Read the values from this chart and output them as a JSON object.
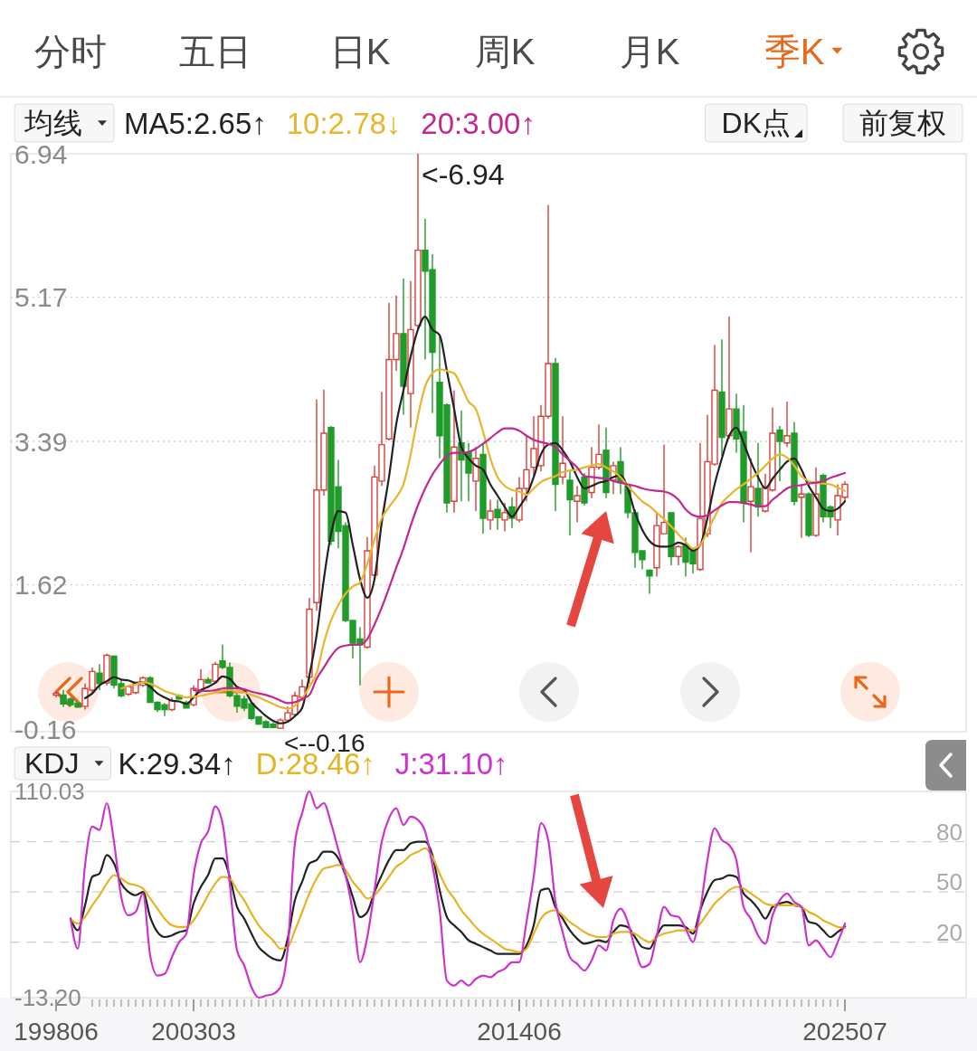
{
  "chart_data": [
    {
      "type": "candlestick",
      "legend_title": "均线",
      "legend": "top",
      "tick_labels": "y",
      "grid": "y",
      "categories": [
        "199806",
        null,
        null,
        null,
        null,
        null,
        null,
        null,
        null,
        null,
        null,
        null,
        null,
        null,
        null,
        null,
        null,
        null,
        null,
        "200303",
        null,
        null,
        null,
        null,
        null,
        null,
        null,
        null,
        null,
        null,
        null,
        null,
        null,
        null,
        null,
        null,
        null,
        null,
        null,
        null,
        null,
        null,
        null,
        null,
        null,
        null,
        null,
        null,
        null,
        null,
        null,
        null,
        null,
        null,
        null,
        null,
        null,
        null,
        null,
        null,
        null,
        null,
        null,
        null,
        "201406",
        null,
        null,
        null,
        null,
        null,
        null,
        null,
        null,
        null,
        null,
        null,
        null,
        null,
        null,
        null,
        null,
        null,
        null,
        null,
        null,
        null,
        null,
        null,
        null,
        null,
        null,
        null,
        null,
        null,
        null,
        null,
        null,
        null,
        null,
        null,
        null,
        null,
        null,
        null,
        null,
        null,
        null,
        null,
        null,
        "202507"
      ],
      "ylim": [
        -0.16,
        6.94
      ],
      "yticks": [
        -0.16,
        1.62,
        3.39,
        5.17,
        6.94
      ],
      "ohlc": [
        [
          0.26,
          0.31,
          0.23,
          0.28
        ],
        [
          0.26,
          0.32,
          0.11,
          0.15
        ],
        [
          0.21,
          0.23,
          0.12,
          0.14
        ],
        [
          0.16,
          0.17,
          0.1,
          0.11
        ],
        [
          0.12,
          0.4,
          0.08,
          0.34
        ],
        [
          0.32,
          0.6,
          0.27,
          0.55
        ],
        [
          0.53,
          0.64,
          0.32,
          0.4
        ],
        [
          0.41,
          0.77,
          0.38,
          0.75
        ],
        [
          0.74,
          0.75,
          0.34,
          0.38
        ],
        [
          0.4,
          0.45,
          0.23,
          0.25
        ],
        [
          0.27,
          0.38,
          0.25,
          0.36
        ],
        [
          0.29,
          0.42,
          0.27,
          0.4
        ],
        [
          0.38,
          0.49,
          0.36,
          0.47
        ],
        [
          0.47,
          0.49,
          0.16,
          0.17
        ],
        [
          0.17,
          0.18,
          0.05,
          0.08
        ],
        [
          0.14,
          0.16,
          0,
          0.08
        ],
        [
          0.08,
          0.23,
          0.06,
          0.19
        ],
        [
          0.25,
          0.27,
          0.2,
          0.21
        ],
        [
          0.17,
          0.19,
          0.09,
          0.1
        ],
        [
          0.14,
          0.38,
          0.12,
          0.34
        ],
        [
          0.32,
          0.58,
          0.28,
          0.45
        ],
        [
          0.45,
          0.48,
          0.4,
          0.41
        ],
        [
          0.43,
          0.67,
          0.4,
          0.64
        ],
        [
          0.68,
          0.88,
          0.58,
          0.6
        ],
        [
          0.6,
          0.66,
          0.23,
          0.25
        ],
        [
          0.25,
          0.28,
          0.04,
          0.12
        ],
        [
          0.21,
          0.25,
          0.06,
          0.1
        ],
        [
          0.15,
          0.17,
          -0.05,
          -0.03
        ],
        [
          -0.01,
          0,
          -0.11,
          -0.1
        ],
        [
          -0.07,
          -0.05,
          -0.15,
          -0.14
        ],
        [
          -0.1,
          -0.08,
          -0.15,
          -0.14
        ],
        [
          -0.15,
          -0.03,
          -0.16,
          -0.05
        ],
        [
          -0.05,
          0.12,
          -0.08,
          0.04
        ],
        [
          0.02,
          0.3,
          0,
          0.25
        ],
        [
          0.23,
          0.45,
          0.19,
          0.36
        ],
        [
          0.48,
          1.46,
          0.4,
          1.32
        ],
        [
          1.4,
          3.91,
          1.3,
          2.79
        ],
        [
          2.79,
          4.03,
          2.72,
          3.49
        ],
        [
          3.56,
          3.58,
          2.11,
          2.16
        ],
        [
          2.83,
          3.16,
          2.07,
          2.28
        ],
        [
          2.35,
          2.39,
          1.16,
          1.18
        ],
        [
          1.18,
          1.18,
          0.71,
          0.9
        ],
        [
          0.95,
          1.1,
          0.38,
          0.88
        ],
        [
          0.85,
          2.21,
          0.83,
          2.04
        ],
        [
          1.74,
          3.09,
          1.72,
          2.95
        ],
        [
          2.9,
          4.0,
          2.84,
          3.35
        ],
        [
          3.42,
          5.1,
          3.4,
          4.4
        ],
        [
          4.4,
          5.19,
          4.26,
          4.72
        ],
        [
          4.72,
          5.4,
          3.72,
          4.07
        ],
        [
          3.98,
          5.37,
          3.56,
          4.77
        ],
        [
          4.82,
          6.94,
          4.77,
          5.75
        ],
        [
          5.75,
          6.14,
          4.4,
          5.49
        ],
        [
          5.51,
          5.7,
          3.74,
          4.49
        ],
        [
          4.12,
          4.68,
          3.18,
          3.46
        ],
        [
          3.84,
          3.86,
          2.51,
          2.63
        ],
        [
          2.65,
          4.02,
          2.51,
          3.32
        ],
        [
          3.37,
          3.77,
          2.65,
          3.16
        ],
        [
          3.26,
          3.37,
          2.65,
          3.0
        ],
        [
          2.9,
          3.32,
          2.53,
          3.18
        ],
        [
          3.23,
          3.37,
          2.25,
          2.44
        ],
        [
          2.42,
          2.67,
          2.3,
          2.53
        ],
        [
          2.55,
          2.67,
          2.3,
          2.45
        ],
        [
          2.42,
          2.63,
          2.28,
          2.51
        ],
        [
          2.58,
          2.7,
          2.32,
          2.44
        ],
        [
          2.42,
          2.95,
          2.39,
          2.81
        ],
        [
          2.81,
          3.46,
          2.65,
          3.04
        ],
        [
          3.07,
          3.7,
          2.97,
          3.3
        ],
        [
          3.09,
          3.84,
          3.02,
          3.7
        ],
        [
          3.7,
          6.31,
          3.67,
          4.35
        ],
        [
          4.35,
          4.42,
          2.53,
          2.86
        ],
        [
          2.95,
          3.7,
          2.86,
          3.12
        ],
        [
          2.91,
          3.04,
          2.23,
          2.67
        ],
        [
          2.65,
          2.84,
          2.39,
          2.72
        ],
        [
          2.95,
          3.0,
          2.6,
          2.63
        ],
        [
          2.76,
          3.32,
          2.69,
          3.07
        ],
        [
          3.07,
          3.6,
          3.04,
          3.23
        ],
        [
          3.28,
          3.56,
          2.69,
          2.76
        ],
        [
          2.91,
          3.14,
          2.74,
          3.09
        ],
        [
          3.14,
          3.32,
          2.74,
          2.88
        ],
        [
          2.84,
          2.86,
          2.44,
          2.51
        ],
        [
          2.51,
          2.55,
          1.83,
          2.02
        ],
        [
          2.04,
          2.04,
          1.81,
          1.93
        ],
        [
          1.8,
          1.81,
          1.51,
          1.73
        ],
        [
          1.83,
          2.51,
          1.72,
          2.35
        ],
        [
          2.25,
          3.35,
          2.25,
          2.39
        ],
        [
          2.51,
          2.51,
          1.86,
          1.97
        ],
        [
          1.97,
          2.11,
          1.86,
          2.09
        ],
        [
          2.11,
          2.2,
          1.72,
          1.9
        ],
        [
          2.04,
          2.06,
          1.76,
          1.88
        ],
        [
          1.81,
          3.37,
          1.79,
          2.44
        ],
        [
          2.25,
          3.72,
          2.21,
          3.14
        ],
        [
          3.11,
          4.58,
          3.09,
          4.02
        ],
        [
          4.0,
          4.65,
          3.21,
          3.44
        ],
        [
          3.46,
          4.93,
          3.42,
          3.79
        ],
        [
          3.79,
          3.98,
          3.25,
          3.42
        ],
        [
          3.51,
          3.84,
          2.39,
          2.63
        ],
        [
          2.65,
          3.18,
          2.02,
          2.83
        ],
        [
          2.81,
          3.37,
          2.46,
          2.58
        ],
        [
          2.53,
          2.99,
          2.51,
          2.83
        ],
        [
          2.79,
          3.81,
          2.77,
          3.49
        ],
        [
          3.53,
          3.58,
          2.9,
          3.39
        ],
        [
          3.37,
          3.88,
          3.32,
          3.46
        ],
        [
          3.49,
          3.63,
          2.6,
          2.65
        ],
        [
          2.7,
          2.86,
          2.2,
          2.74
        ],
        [
          2.74,
          2.76,
          2.21,
          2.23
        ],
        [
          2.23,
          3.07,
          2.21,
          2.74
        ],
        [
          2.97,
          2.99,
          2.39,
          2.46
        ],
        [
          2.58,
          2.6,
          2.32,
          2.46
        ],
        [
          2.42,
          2.86,
          2.23,
          2.72
        ],
        [
          2.7,
          2.9,
          2.65,
          2.86
        ]
      ],
      "series": [
        {
          "name": "MA5:2.65↑",
          "type": "line",
          "color": "#222222",
          "values": [
            null,
            null,
            null,
            null,
            0.22,
            0.28,
            0.38,
            0.43,
            0.48,
            0.45,
            0.44,
            0.41,
            0.42,
            0.36,
            0.28,
            0.23,
            0.19,
            0.18,
            0.15,
            0.23,
            0.32,
            0.36,
            0.41,
            0.49,
            0.46,
            0.36,
            0.32,
            0.17,
            0.08,
            0,
            -0.06,
            -0.09,
            -0.07,
            0,
            0.1,
            0.5,
            1.0,
            1.69,
            2.25,
            2.53,
            2.51,
            2.11,
            1.69,
            1.46,
            1.69,
            2.39,
            2.95,
            3.6,
            4.02,
            4.44,
            4.77,
            4.93,
            4.77,
            4.7,
            4.26,
            3.79,
            3.32,
            3.18,
            3.09,
            3.04,
            2.86,
            2.72,
            2.58,
            2.46,
            2.58,
            2.72,
            2.95,
            3.23,
            3.35,
            3.37,
            3.28,
            3.14,
            2.95,
            2.81,
            2.84,
            2.88,
            2.9,
            2.95,
            2.97,
            2.81,
            2.51,
            2.3,
            2.16,
            2.1,
            2.09,
            2.1,
            2.14,
            2.11,
            2.04,
            2.11,
            2.44,
            2.86,
            3.18,
            3.46,
            3.56,
            3.37,
            3.14,
            2.95,
            2.81,
            2.93,
            3.04,
            3.14,
            3.18,
            3.04,
            2.84,
            2.7,
            2.56,
            2.53,
            2.56,
            2.65
          ]
        },
        {
          "name": "10:2.78↓",
          "type": "line",
          "color": "#e8b52c",
          "values": [
            null,
            null,
            null,
            null,
            null,
            null,
            null,
            null,
            null,
            0.34,
            0.37,
            0.39,
            0.42,
            0.4,
            0.36,
            0.31,
            0.28,
            0.25,
            0.23,
            0.24,
            0.25,
            0.27,
            0.29,
            0.31,
            0.32,
            0.3,
            0.29,
            0.26,
            0.23,
            0.19,
            0.15,
            0.11,
            0.09,
            0.13,
            0.22,
            0.36,
            0.53,
            0.9,
            1.18,
            1.37,
            1.51,
            1.6,
            1.65,
            1.88,
            2.18,
            2.44,
            2.58,
            2.7,
            2.86,
            3.23,
            3.7,
            4.07,
            4.23,
            4.28,
            4.26,
            4.23,
            4.07,
            3.88,
            3.79,
            3.51,
            3.18,
            2.95,
            2.84,
            2.79,
            2.77,
            2.73,
            2.81,
            2.89,
            2.93,
            2.96,
            3.01,
            3.03,
            3.04,
            3.07,
            3.09,
            3.11,
            3.07,
            3.02,
            2.95,
            2.84,
            2.74,
            2.65,
            2.59,
            2.51,
            2.43,
            2.34,
            2.24,
            2.15,
            2.07,
            2.11,
            2.28,
            2.46,
            2.63,
            2.72,
            2.8,
            2.86,
            2.93,
            3.0,
            3.09,
            3.18,
            3.23,
            3.19,
            3.09,
            2.96,
            2.9,
            2.88,
            2.87,
            2.86,
            2.82,
            2.78
          ]
        },
        {
          "name": "20:3.00↑",
          "type": "line",
          "color": "#c2298f",
          "values": [
            null,
            null,
            null,
            null,
            null,
            null,
            null,
            null,
            null,
            null,
            null,
            null,
            null,
            null,
            null,
            null,
            null,
            null,
            null,
            0.32,
            0.31,
            0.31,
            0.32,
            0.34,
            0.35,
            0.34,
            0.33,
            0.3,
            0.28,
            0.26,
            0.23,
            0.19,
            0.16,
            0.17,
            0.21,
            0.26,
            0.46,
            0.6,
            0.74,
            0.84,
            0.87,
            0.88,
            0.88,
            0.95,
            1.13,
            1.34,
            1.58,
            1.83,
            2.07,
            2.35,
            2.6,
            2.81,
            2.98,
            3.11,
            3.21,
            3.25,
            3.25,
            3.26,
            3.3,
            3.36,
            3.43,
            3.5,
            3.55,
            3.55,
            3.52,
            3.46,
            3.41,
            3.38,
            3.36,
            3.32,
            3.23,
            3.15,
            3.07,
            2.96,
            2.95,
            2.94,
            2.93,
            2.9,
            2.88,
            2.86,
            2.84,
            2.81,
            2.79,
            2.78,
            2.77,
            2.74,
            2.67,
            2.55,
            2.48,
            2.46,
            2.48,
            2.54,
            2.6,
            2.64,
            2.64,
            2.63,
            2.61,
            2.59,
            2.59,
            2.67,
            2.74,
            2.81,
            2.84,
            2.85,
            2.87,
            2.88,
            2.9,
            2.94,
            2.97,
            3.0
          ]
        }
      ],
      "annotations": [
        "分时",
        "五日",
        "日K",
        "周K",
        "月K",
        "季K",
        "DK点",
        "前复权",
        "<-6.94",
        "<--0.16"
      ]
    },
    {
      "type": "line",
      "legend_title": "KDJ",
      "legend": "top",
      "categories": [
        "199806",
        null,
        null,
        null,
        null,
        null,
        null,
        null,
        null,
        null,
        null,
        null,
        null,
        null,
        null,
        null,
        null,
        null,
        null,
        "200303",
        null,
        null,
        null,
        null,
        null,
        null,
        null,
        null,
        null,
        null,
        null,
        null,
        null,
        null,
        null,
        null,
        null,
        null,
        null,
        null,
        null,
        null,
        null,
        null,
        null,
        null,
        null,
        null,
        null,
        null,
        null,
        null,
        null,
        null,
        null,
        null,
        null,
        null,
        null,
        null,
        null,
        null,
        null,
        null,
        "201406",
        null,
        null,
        null,
        null,
        null,
        null,
        null,
        null,
        null,
        null,
        null,
        null,
        null,
        null,
        null,
        null,
        null,
        null,
        null,
        null,
        null,
        null,
        null,
        null,
        null,
        null,
        null,
        null,
        null,
        null,
        null,
        null,
        null,
        null,
        null,
        null,
        null,
        null,
        null,
        null,
        null,
        null,
        null,
        null,
        "202507"
      ],
      "ylim": [
        -13.2,
        110.03
      ],
      "yticks": [
        {
          "value": -13.2,
          "label": "-13.20"
        },
        110.03
      ],
      "ref_lines": [
        {
          "axis": "y",
          "value": 80,
          "label": "80",
          "color": "#cfcfcf",
          "line_style": "dashed"
        },
        {
          "axis": "y",
          "value": 50,
          "label": "50",
          "color": "#cfcfcf",
          "line_style": "dashed"
        },
        {
          "axis": "y",
          "value": 20,
          "label": "20",
          "color": "#cfcfcf",
          "line_style": "dashed"
        }
      ],
      "series": [
        {
          "name": "K:29.34↑",
          "color": "#222222",
          "values": [
            null,
            null,
            34,
            27,
            42,
            59,
            61,
            72,
            67,
            55,
            50,
            48,
            50,
            35,
            26,
            23,
            24,
            26,
            27,
            43,
            53,
            60,
            70,
            70,
            59,
            41,
            34,
            25,
            17,
            13,
            10,
            9,
            22,
            45,
            56,
            67,
            69,
            74,
            74,
            70,
            60,
            47,
            35,
            38,
            50,
            60,
            69,
            75,
            75,
            79,
            80,
            80,
            72,
            51,
            35,
            30,
            26,
            21,
            19,
            17,
            15,
            13,
            13,
            13,
            13,
            18,
            30,
            51,
            52,
            41,
            34,
            27,
            22,
            19,
            20,
            21,
            20,
            26,
            30,
            29,
            23,
            17,
            16,
            24,
            30,
            30,
            30,
            29,
            25,
            39,
            50,
            57,
            58,
            60,
            59,
            49,
            45,
            40,
            34,
            41,
            43,
            44,
            42,
            41,
            32,
            31,
            27,
            23,
            26,
            29.34
          ]
        },
        {
          "name": "D:28.46↑",
          "color": "#e6b422",
          "values": [
            null,
            null,
            34,
            31,
            35,
            42,
            48,
            55,
            60,
            58,
            55,
            54,
            52,
            46,
            40,
            34,
            30,
            29,
            29,
            33,
            40,
            48,
            55,
            59,
            58,
            51,
            45,
            37,
            30,
            25,
            21,
            16,
            17,
            27,
            38,
            49,
            58,
            64,
            65,
            66,
            63,
            56,
            51,
            46,
            48,
            53,
            59,
            65,
            68,
            72,
            74,
            76,
            71,
            61,
            52,
            46,
            39,
            34,
            29,
            25,
            22,
            19,
            16,
            15,
            14,
            16,
            25,
            34,
            38,
            39,
            36,
            32,
            29,
            26,
            24,
            23,
            23,
            25,
            26,
            26,
            25,
            22,
            20,
            23,
            25,
            26,
            27,
            27,
            27,
            31,
            37,
            43,
            47,
            51,
            53,
            52,
            49,
            46,
            43,
            42,
            42,
            42,
            42,
            41,
            38,
            36,
            33,
            31,
            29,
            28.46
          ]
        },
        {
          "name": "J:31.10↑",
          "color": "#cc33cc",
          "values": [
            null,
            null,
            34,
            16,
            66,
            89,
            87,
            103,
            80,
            47,
            36,
            38,
            49,
            12,
            0,
            1,
            11,
            20,
            25,
            60,
            79,
            86,
            101,
            91,
            55,
            15,
            6,
            -7,
            -13.2,
            -12,
            -11,
            -7,
            16,
            79,
            97,
            110.03,
            100,
            103,
            91,
            75,
            60,
            38,
            8,
            23,
            51,
            80,
            94,
            100,
            90,
            95,
            93,
            86,
            66,
            39,
            -3,
            -6,
            -3,
            -6,
            -2,
            0,
            -1,
            2,
            4,
            8,
            8,
            32,
            59,
            91,
            81,
            44,
            26,
            11,
            7,
            3,
            9,
            18,
            15,
            33,
            40,
            32,
            16,
            5,
            7,
            24,
            41,
            36,
            35,
            28,
            20,
            39,
            69,
            88,
            81,
            78,
            69,
            41,
            34,
            24,
            19,
            36,
            45,
            49,
            44,
            41,
            18,
            21,
            16,
            11,
            20,
            31.1
          ]
        }
      ]
    }
  ]
}
